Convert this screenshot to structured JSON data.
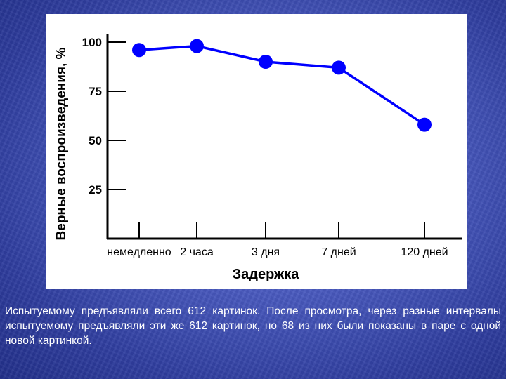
{
  "chart_data": {
    "type": "line",
    "categories": [
      "немедленно",
      "2 часа",
      "3 дня",
      "7 дней",
      "120 дней"
    ],
    "series": [
      {
        "values": [
          96,
          98,
          90,
          87,
          58
        ]
      }
    ],
    "ylabel": "Верные воспроизведения, %",
    "xlabel": "Задержка",
    "yticks": [
      100,
      75,
      50,
      25
    ],
    "ylim": [
      0,
      100
    ],
    "grid": false,
    "line_color": "#0000ff",
    "axis_color": "#000000"
  },
  "caption": "Испытуемому предъявляли всего 612 картинок. После просмотра, через разные интервалы испытуемому предъявляли эти же 612 картинок, но 68 из них были показаны в паре с одной новой картинкой."
}
